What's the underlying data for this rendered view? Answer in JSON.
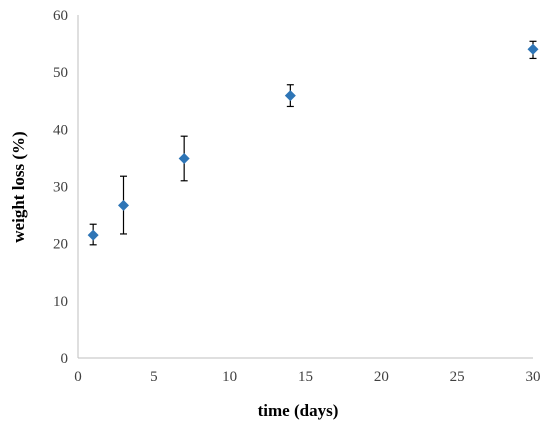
{
  "chart_data": {
    "type": "scatter",
    "title": "",
    "xlabel": "time (days)",
    "ylabel": "weight loss (%)",
    "xlim": [
      0,
      30
    ],
    "ylim": [
      0,
      60
    ],
    "x_ticks": [
      0,
      5,
      10,
      15,
      20,
      25,
      30
    ],
    "y_ticks": [
      0,
      10,
      20,
      30,
      40,
      50,
      60
    ],
    "grid": false,
    "legend": "none",
    "series": [
      {
        "color": "#2E75B6",
        "marker": "diamond",
        "points": [
          {
            "x": 1,
            "y": 21.5,
            "err_low": 19.8,
            "err_high": 23.4
          },
          {
            "x": 3,
            "y": 26.7,
            "err_low": 21.7,
            "err_high": 31.8
          },
          {
            "x": 7,
            "y": 34.9,
            "err_low": 31.0,
            "err_high": 38.8
          },
          {
            "x": 14,
            "y": 45.9,
            "err_low": 44.0,
            "err_high": 47.8
          },
          {
            "x": 30,
            "y": 54.0,
            "err_low": 52.4,
            "err_high": 55.4
          }
        ]
      }
    ]
  }
}
